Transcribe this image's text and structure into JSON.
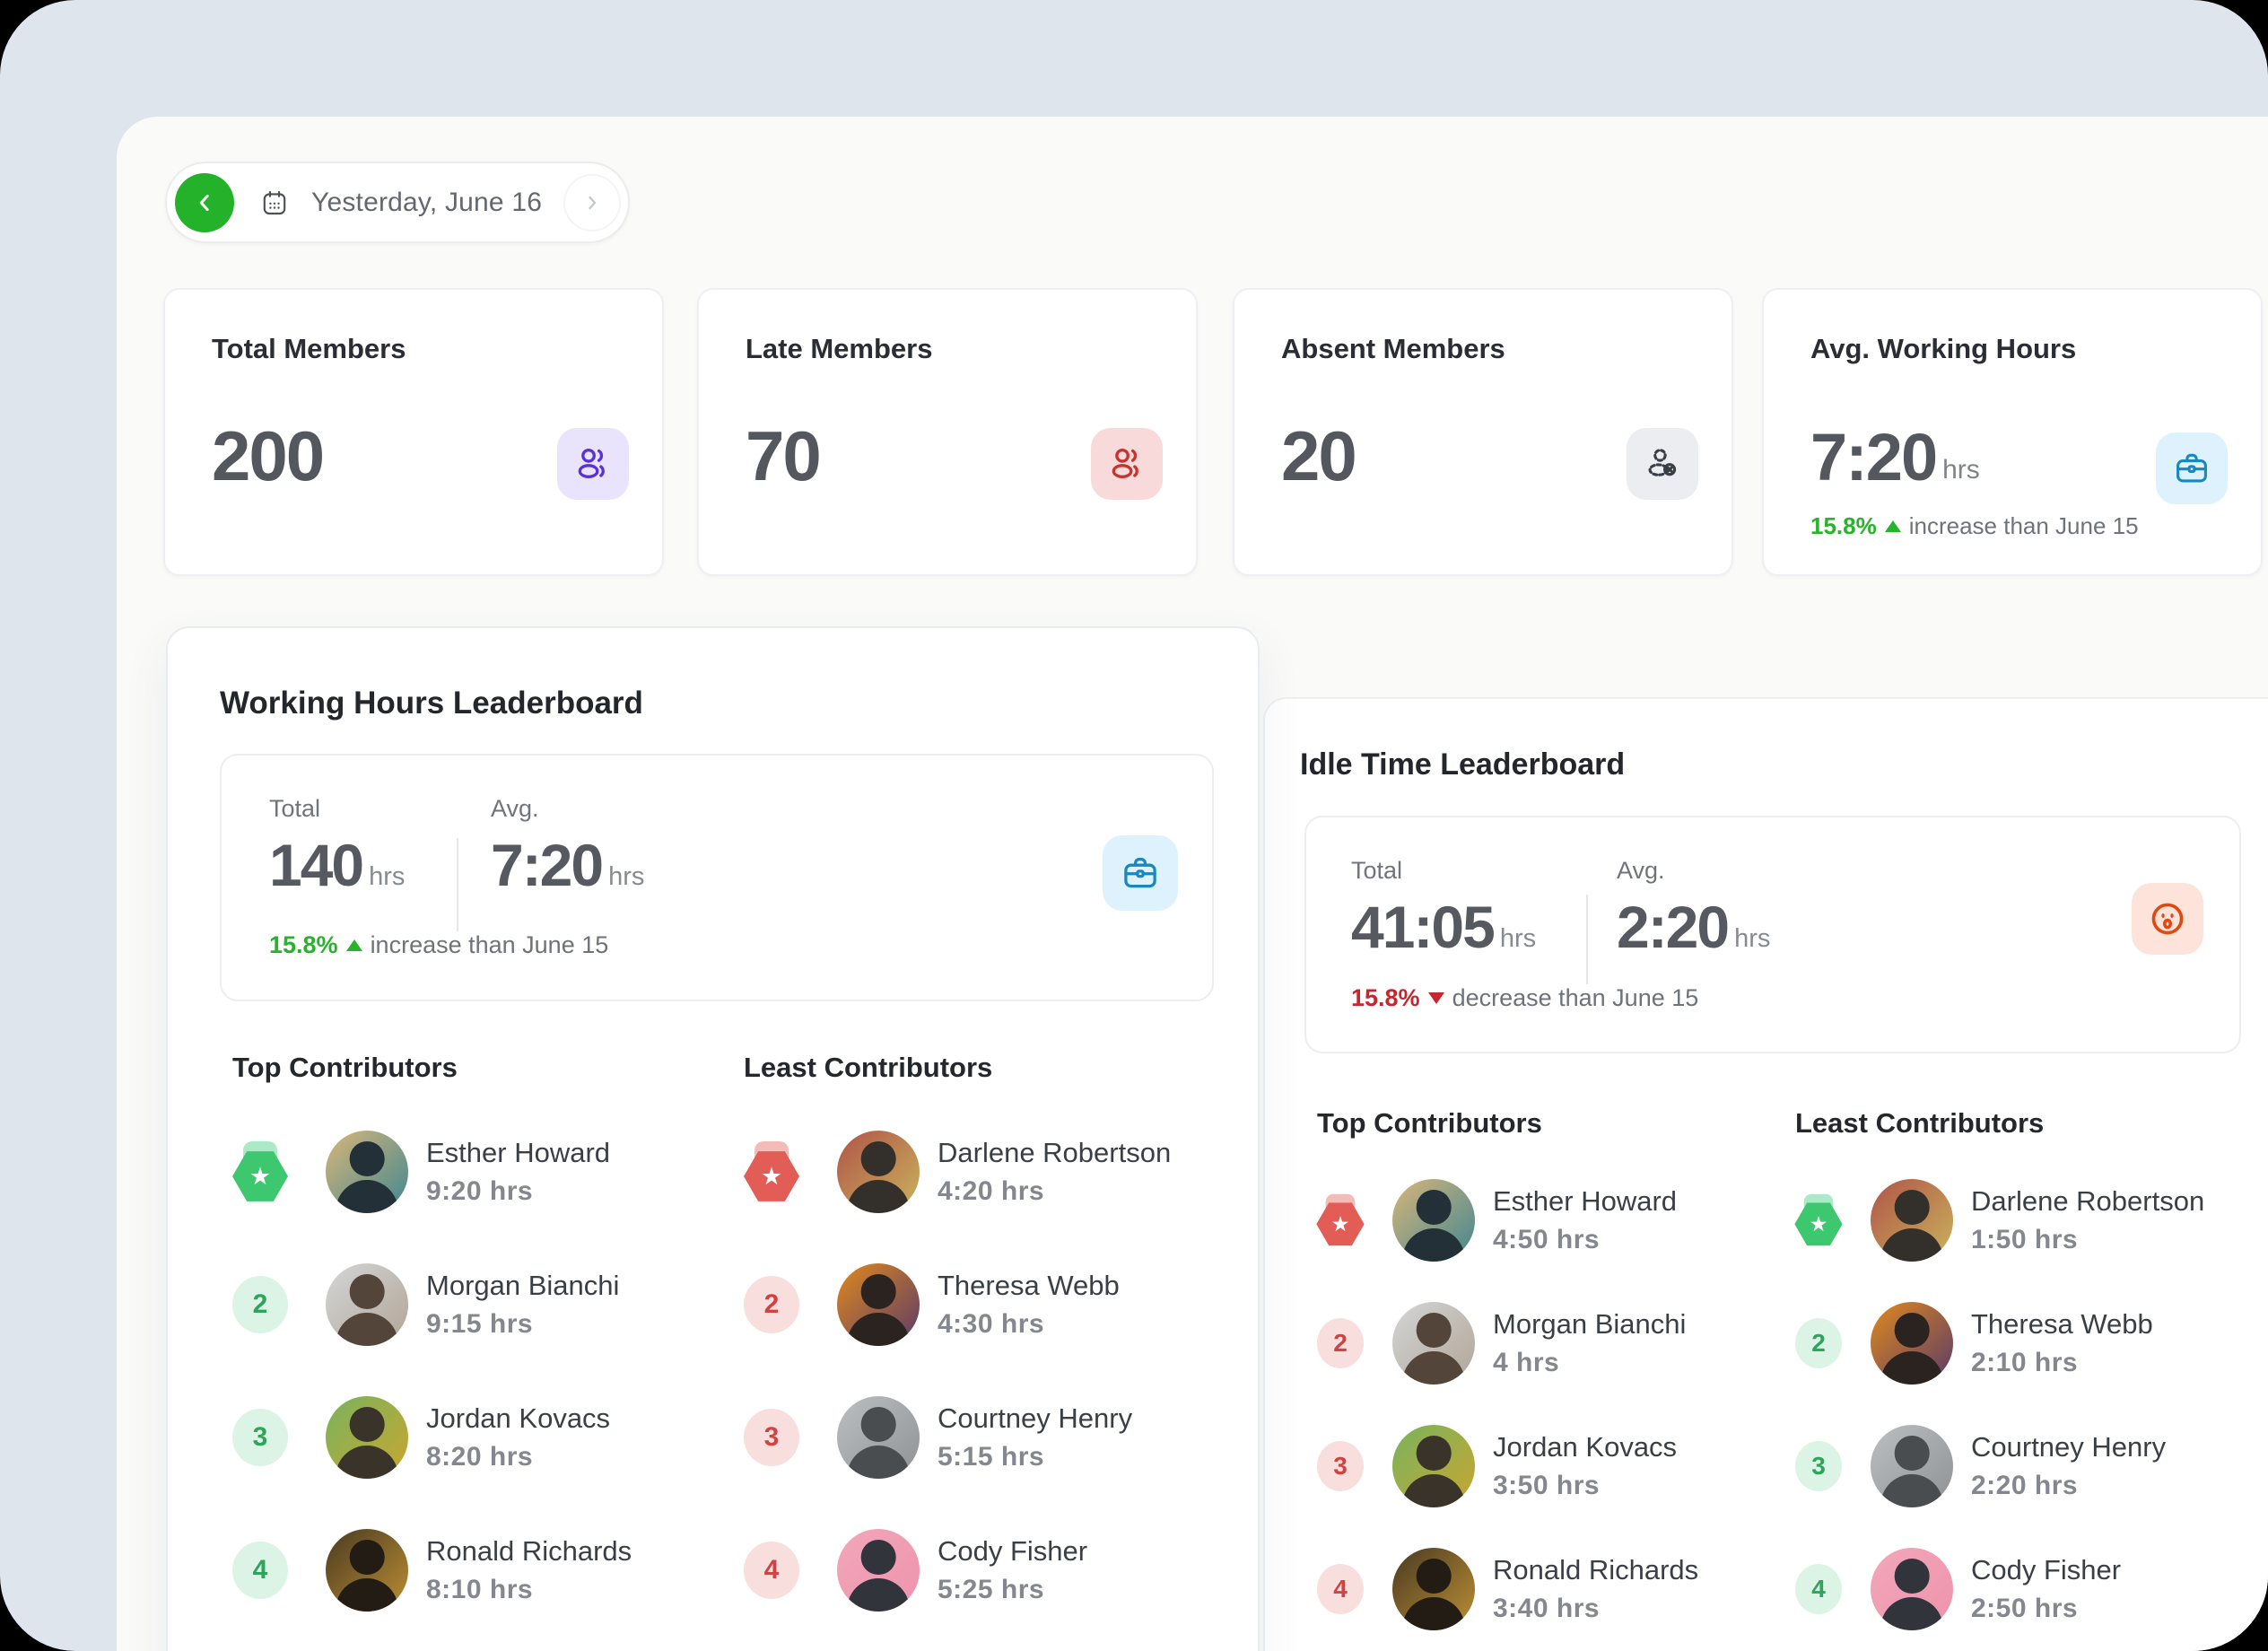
{
  "colors": {
    "background": "#dfe5ed",
    "panel": "#fafaf8",
    "accent_green": "#23b22a",
    "accent_red": "#c6262e",
    "users_purple": "#5a31d8",
    "users_purple_bg": "#e9e4fb",
    "users_red": "#c5342e",
    "users_red_bg": "#f9dada",
    "absent_gray": "#3a3f47",
    "absent_gray_bg": "#ebedf1",
    "briefcase_blue": "#1b87bf",
    "briefcase_blue_bg": "#ddf2fc",
    "shock_orange": "#e04a10",
    "shock_orange_bg": "#fde3da"
  },
  "date_nav": {
    "back_icon": "chevron-left-icon",
    "calendar_icon": "calendar-icon",
    "label": "Yesterday, June 16",
    "forward_icon": "chevron-right-icon"
  },
  "stats": [
    {
      "title": "Total Members",
      "value": "200",
      "icon": "users-icon"
    },
    {
      "title": "Late Members",
      "value": "70",
      "icon": "users-icon"
    },
    {
      "title": "Absent Members",
      "value": "20",
      "icon": "user-absent-icon"
    },
    {
      "title": "Avg. Working Hours",
      "value": "7:20",
      "unit": "hrs",
      "delta_pct": "15.8%",
      "delta_dir": "up",
      "delta_text": "increase than June 15",
      "icon": "briefcase-icon"
    }
  ],
  "working_hours": {
    "title": "Working Hours Leaderboard",
    "summary": {
      "total_label": "Total",
      "total_value": "140",
      "total_unit": "hrs",
      "avg_label": "Avg.",
      "avg_value": "7:20",
      "avg_unit": "hrs",
      "delta_pct": "15.8%",
      "delta_dir": "up",
      "delta_text": "increase than June 15",
      "icon": "briefcase-icon"
    },
    "top": {
      "heading": "Top Contributors",
      "theme": "green",
      "items": [
        {
          "rank": 1,
          "name": "Esther Howard",
          "time": "9:20 hrs"
        },
        {
          "rank": 2,
          "name": "Morgan Bianchi",
          "time": "9:15 hrs"
        },
        {
          "rank": 3,
          "name": "Jordan Kovacs",
          "time": "8:20 hrs"
        },
        {
          "rank": 4,
          "name": "Ronald Richards",
          "time": "8:10 hrs"
        }
      ]
    },
    "least": {
      "heading": "Least Contributors",
      "theme": "red",
      "items": [
        {
          "rank": 1,
          "name": "Darlene Robertson",
          "time": "4:20 hrs"
        },
        {
          "rank": 2,
          "name": "Theresa Webb",
          "time": "4:30 hrs"
        },
        {
          "rank": 3,
          "name": "Courtney Henry",
          "time": "5:15 hrs"
        },
        {
          "rank": 4,
          "name": "Cody Fisher",
          "time": "5:25 hrs"
        }
      ]
    }
  },
  "idle_time": {
    "title": "Idle Time Leaderboard",
    "summary": {
      "total_label": "Total",
      "total_value": "41:05",
      "total_unit": "hrs",
      "avg_label": "Avg.",
      "avg_value": "2:20",
      "avg_unit": "hrs",
      "delta_pct": "15.8%",
      "delta_dir": "down",
      "delta_text": "decrease than June 15",
      "icon": "shocked-face-icon"
    },
    "top": {
      "heading": "Top Contributors",
      "theme": "red",
      "items": [
        {
          "rank": 1,
          "name": "Esther Howard",
          "time": "4:50 hrs"
        },
        {
          "rank": 2,
          "name": "Morgan Bianchi",
          "time": "4 hrs"
        },
        {
          "rank": 3,
          "name": "Jordan Kovacs",
          "time": "3:50 hrs"
        },
        {
          "rank": 4,
          "name": "Ronald Richards",
          "time": "3:40 hrs"
        }
      ]
    },
    "least": {
      "heading": "Least Contributors",
      "theme": "green",
      "items": [
        {
          "rank": 1,
          "name": "Darlene Robertson",
          "time": "1:50 hrs"
        },
        {
          "rank": 2,
          "name": "Theresa Webb",
          "time": "2:10 hrs"
        },
        {
          "rank": 3,
          "name": "Courtney Henry",
          "time": "2:20 hrs"
        },
        {
          "rank": 4,
          "name": "Cody Fisher",
          "time": "2:50 hrs"
        }
      ]
    }
  },
  "avatars": {
    "Esther Howard": {
      "bg1": "#d9b67a",
      "bg2": "#3f8691",
      "fig": "#233038"
    },
    "Morgan Bianchi": {
      "bg1": "#d3d6d7",
      "bg2": "#b2a496",
      "fig": "#54453a"
    },
    "Jordan Kovacs": {
      "bg1": "#79b35f",
      "bg2": "#c9a62e",
      "fig": "#39332a"
    },
    "Ronald Richards": {
      "bg1": "#4a3a22",
      "bg2": "#bd8f33",
      "fig": "#221c15"
    },
    "Darlene Robertson": {
      "bg1": "#b05448",
      "bg2": "#c9b45c",
      "fig": "#33302b"
    },
    "Theresa Webb": {
      "bg1": "#e0891e",
      "bg2": "#5a3a68",
      "fig": "#2b2320"
    },
    "Courtney Henry": {
      "bg1": "#bcbfc1",
      "bg2": "#8e9294",
      "fig": "#4a4d50"
    },
    "Cody Fisher": {
      "bg1": "#f2a7bb",
      "bg2": "#ee93ab",
      "fig": "#31343b"
    }
  }
}
